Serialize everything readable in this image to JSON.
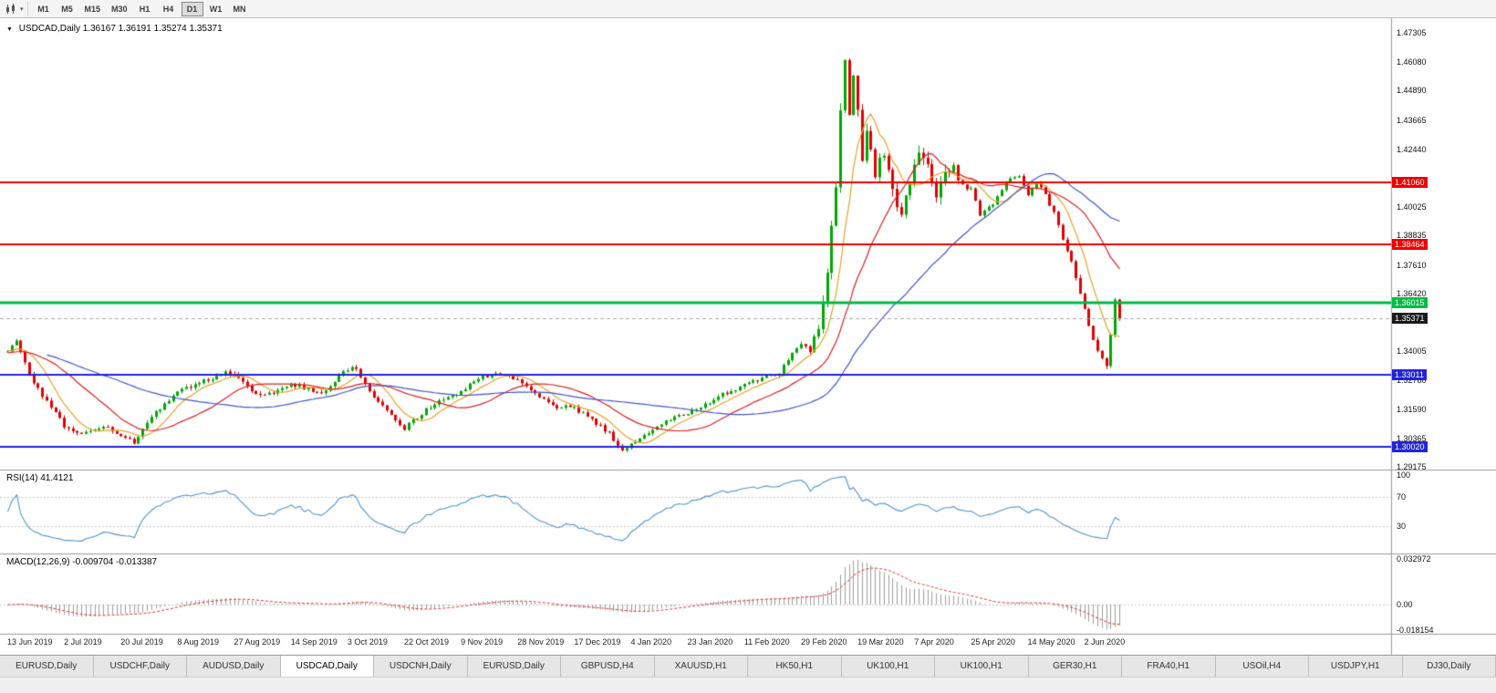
{
  "toolbar": {
    "timeframes": [
      {
        "label": "M1",
        "active": false
      },
      {
        "label": "M5",
        "active": false
      },
      {
        "label": "M15",
        "active": false
      },
      {
        "label": "M30",
        "active": false
      },
      {
        "label": "H1",
        "active": false
      },
      {
        "label": "H4",
        "active": false
      },
      {
        "label": "D1",
        "active": true
      },
      {
        "label": "W1",
        "active": false
      },
      {
        "label": "MN",
        "active": false
      }
    ]
  },
  "chart": {
    "symbol": "USDCAD,Daily",
    "quote_ohlc": "1.36167 1.36191 1.35274 1.35371",
    "current_price": "1.35371"
  },
  "indicators": {
    "rsi": {
      "label": "RSI(14) 41.4121",
      "value": 41.4121,
      "levels": [
        "100",
        "70",
        "30"
      ]
    },
    "macd": {
      "label": "MACD(12,26,9) -0.009704 -0.013387",
      "value": -0.009704,
      "signal": -0.013387,
      "axis": [
        "0.032972",
        "0.00",
        "-0.018154"
      ]
    }
  },
  "price_axis": {
    "ticks": [
      "1.47305",
      "1.46080",
      "1.44890",
      "1.43665",
      "1.42440",
      "1.40025",
      "1.38835",
      "1.37610",
      "1.36420",
      "1.34005",
      "1.32780",
      "1.31590",
      "1.30365",
      "1.29175"
    ],
    "tags": [
      {
        "value": "1.41060",
        "color": "#ee0000"
      },
      {
        "value": "1.38464",
        "color": "#ee0000"
      },
      {
        "value": "1.36015",
        "color": "#00bb44"
      },
      {
        "value": "1.35371",
        "color": "#1a1a1a",
        "current": true
      },
      {
        "value": "1.33011",
        "color": "#2222dd"
      },
      {
        "value": "1.30020",
        "color": "#2222dd"
      }
    ]
  },
  "time_axis": [
    "13 Jun 2019",
    "2 Jul 2019",
    "20 Jul 2019",
    "8 Aug 2019",
    "27 Aug 2019",
    "14 Sep 2019",
    "3 Oct 2019",
    "22 Oct 2019",
    "9 Nov 2019",
    "28 Nov 2019",
    "17 Dec 2019",
    "4 Jan 2020",
    "23 Jan 2020",
    "11 Feb 2020",
    "29 Feb 2020",
    "19 Mar 2020",
    "7 Apr 2020",
    "25 Apr 2020",
    "14 May 2020",
    "2 Jun 2020"
  ],
  "tabs": [
    {
      "label": "EURUSD,Daily",
      "active": false
    },
    {
      "label": "USDCHF,Daily",
      "active": false
    },
    {
      "label": "AUDUSD,Daily",
      "active": false
    },
    {
      "label": "USDCAD,Daily",
      "active": true
    },
    {
      "label": "USDCNH,Daily",
      "active": false
    },
    {
      "label": "EURUSD,Daily",
      "active": false
    },
    {
      "label": "GBPUSD,H4",
      "active": false
    },
    {
      "label": "XAUUSD,H1",
      "active": false
    },
    {
      "label": "HK50,H1",
      "active": false
    },
    {
      "label": "UK100,H1",
      "active": false
    },
    {
      "label": "UK100,H1",
      "active": false
    },
    {
      "label": "GER30,H1",
      "active": false
    },
    {
      "label": "FRA40,H1",
      "active": false
    },
    {
      "label": "USOil,H4",
      "active": false
    },
    {
      "label": "USDJPY,H1",
      "active": false
    },
    {
      "label": "DJ30,Daily",
      "active": false
    }
  ],
  "chart_data": {
    "type": "candlestick",
    "symbol": "USDCAD",
    "timeframe": "Daily",
    "last_candle": {
      "open": 1.36167,
      "high": 1.36191,
      "low": 1.35274,
      "close": 1.35371
    },
    "candle_count": 256,
    "candles_per_date_tick": 13,
    "y_range": [
      1.2895,
      1.4785
    ],
    "price_path": [
      [
        -40,
        1.343
      ],
      [
        -20,
        1.338
      ],
      [
        -5,
        1.34
      ],
      [
        0,
        1.3405
      ],
      [
        2,
        1.3438
      ],
      [
        5,
        1.33
      ],
      [
        8,
        1.3215
      ],
      [
        13,
        1.309
      ],
      [
        17,
        1.305
      ],
      [
        22,
        1.3085
      ],
      [
        26,
        1.305
      ],
      [
        29,
        1.302
      ],
      [
        33,
        1.313
      ],
      [
        39,
        1.323
      ],
      [
        44,
        1.327
      ],
      [
        50,
        1.331
      ],
      [
        53,
        1.329
      ],
      [
        57,
        1.322
      ],
      [
        61,
        1.323
      ],
      [
        65,
        1.3265
      ],
      [
        69,
        1.324
      ],
      [
        73,
        1.323
      ],
      [
        77,
        1.332
      ],
      [
        80,
        1.333
      ],
      [
        84,
        1.321
      ],
      [
        88,
        1.313
      ],
      [
        91,
        1.308
      ],
      [
        95,
        1.314
      ],
      [
        99,
        1.32
      ],
      [
        104,
        1.323
      ],
      [
        108,
        1.329
      ],
      [
        112,
        1.331
      ],
      [
        117,
        1.328
      ],
      [
        121,
        1.323
      ],
      [
        125,
        1.317
      ],
      [
        130,
        1.3165
      ],
      [
        134,
        1.311
      ],
      [
        138,
        1.306
      ],
      [
        141,
        1.298
      ],
      [
        143,
        1.301
      ],
      [
        147,
        1.306
      ],
      [
        151,
        1.311
      ],
      [
        156,
        1.314
      ],
      [
        160,
        1.318
      ],
      [
        164,
        1.322
      ],
      [
        169,
        1.326
      ],
      [
        173,
        1.329
      ],
      [
        177,
        1.331
      ],
      [
        180,
        1.339
      ],
      [
        182,
        1.343
      ],
      [
        184,
        1.34
      ],
      [
        186,
        1.351
      ],
      [
        188,
        1.373
      ],
      [
        190,
        1.408
      ],
      [
        191,
        1.442
      ],
      [
        192,
        1.461
      ],
      [
        193,
        1.438
      ],
      [
        194,
        1.455
      ],
      [
        195,
        1.442
      ],
      [
        196,
        1.42
      ],
      [
        197,
        1.432
      ],
      [
        199,
        1.415
      ],
      [
        201,
        1.423
      ],
      [
        203,
        1.406
      ],
      [
        205,
        1.399
      ],
      [
        207,
        1.412
      ],
      [
        209,
        1.422
      ],
      [
        211,
        1.416
      ],
      [
        213,
        1.406
      ],
      [
        215,
        1.413
      ],
      [
        217,
        1.418
      ],
      [
        219,
        1.409
      ],
      [
        221,
        1.408
      ],
      [
        223,
        1.397
      ],
      [
        226,
        1.402
      ],
      [
        229,
        1.411
      ],
      [
        232,
        1.414
      ],
      [
        234,
        1.406
      ],
      [
        236,
        1.411
      ],
      [
        238,
        1.405
      ],
      [
        240,
        1.398
      ],
      [
        242,
        1.387
      ],
      [
        244,
        1.378
      ],
      [
        246,
        1.365
      ],
      [
        247,
        1.358
      ],
      [
        248,
        1.35
      ],
      [
        249,
        1.344
      ],
      [
        250,
        1.34
      ],
      [
        251,
        1.337
      ],
      [
        252,
        1.3345
      ],
      [
        253,
        1.347
      ],
      [
        254,
        1.3616
      ],
      [
        255,
        1.35371
      ]
    ],
    "hlines": [
      {
        "price": 1.4106,
        "color": "#ee0000",
        "width": 2
      },
      {
        "price": 1.38464,
        "color": "#ee0000",
        "width": 2
      },
      {
        "price": 1.36015,
        "color": "#00bb44",
        "width": 3
      },
      {
        "price": 1.33011,
        "color": "#2222dd",
        "width": 2
      },
      {
        "price": 1.3002,
        "color": "#2222dd",
        "width": 2
      }
    ],
    "current_price_line": {
      "price": 1.35371,
      "style": "dashed",
      "color": "#aaaaaa"
    },
    "moving_averages": [
      {
        "period": 8,
        "color": "#e8a22a"
      },
      {
        "period": 22,
        "color": "#dd2222"
      },
      {
        "period": 50,
        "color": "#4455cc"
      }
    ],
    "colors": {
      "up": "#00a800",
      "down": "#e00000"
    },
    "rsi_line_color": "#4f94cd",
    "macd_histogram_color": "#9e9e9e",
    "macd_signal_color": "#dd3333"
  }
}
